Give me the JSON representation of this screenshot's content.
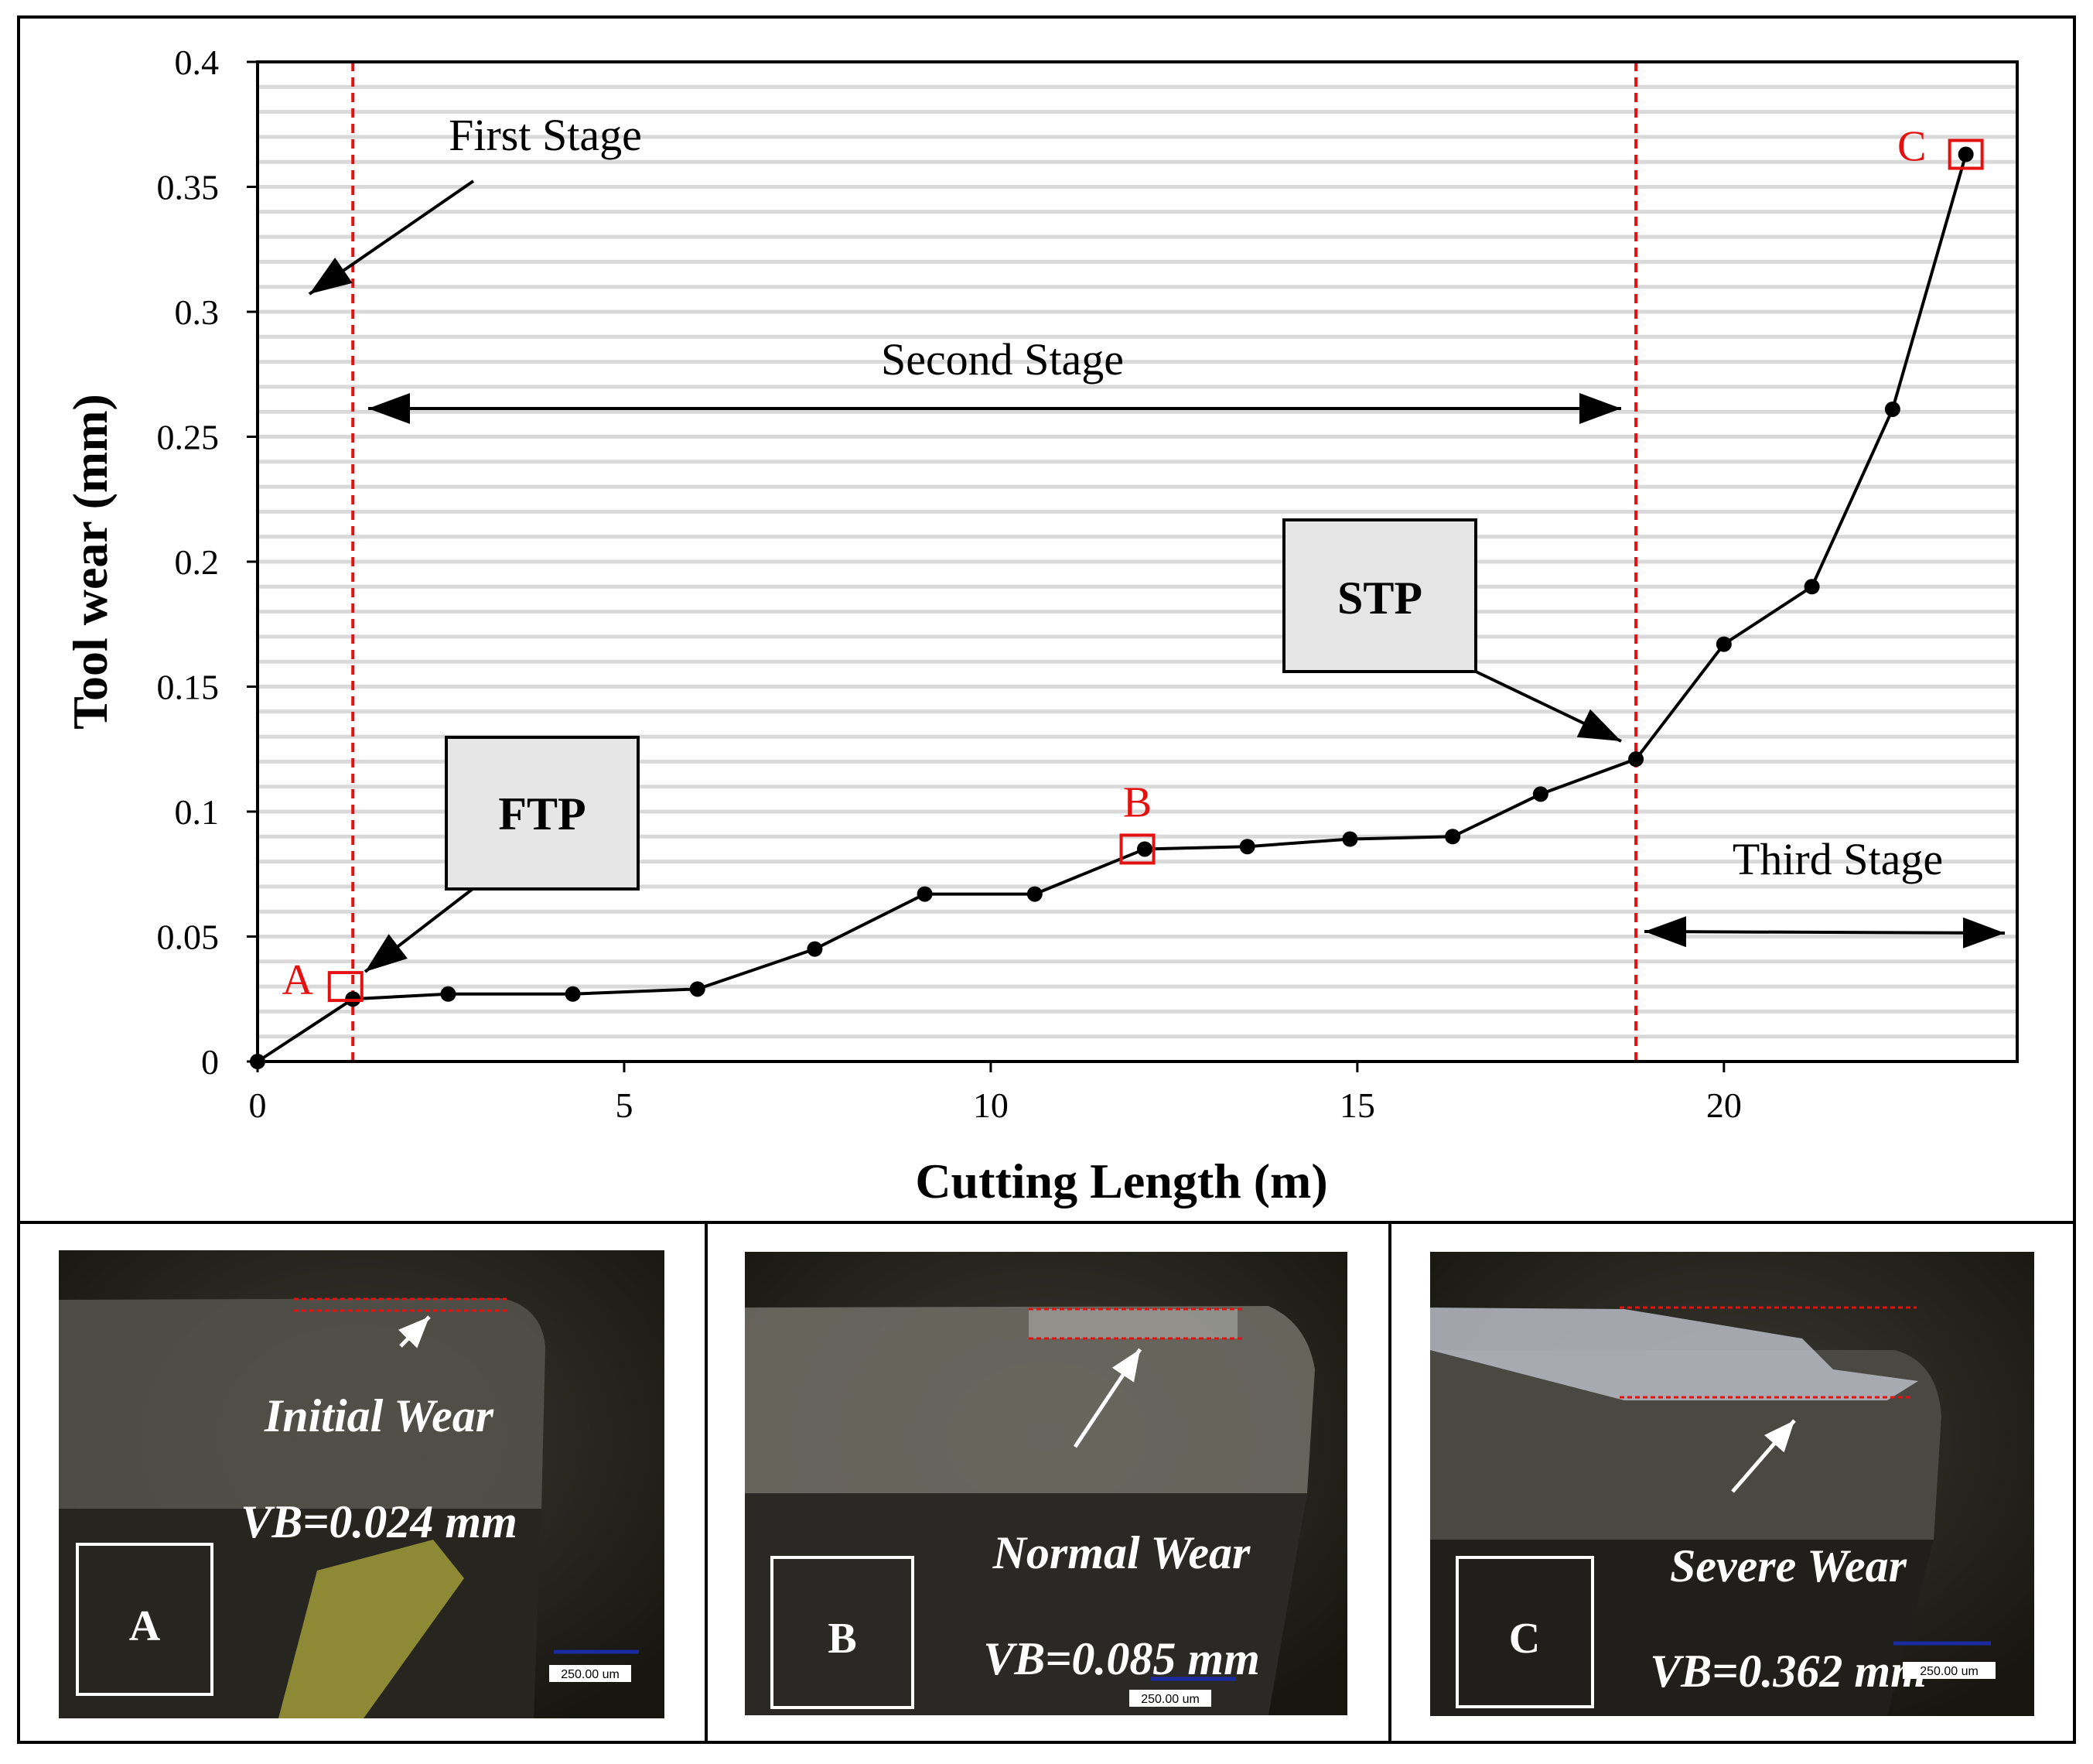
{
  "chart_data": {
    "type": "line",
    "xlabel": "Cutting Length (m)",
    "ylabel": "Tool wear (mm)",
    "xlim": [
      0,
      24
    ],
    "ylim": [
      0,
      0.4
    ],
    "xticks": [
      0,
      5,
      10,
      15,
      20
    ],
    "xtick_labels": [
      "0",
      "5",
      "10",
      "15",
      "20"
    ],
    "yticks": [
      0,
      0.05,
      0.1,
      0.15,
      0.2,
      0.25,
      0.3,
      0.35,
      0.4
    ],
    "ytick_labels": [
      "0",
      "0.05",
      "0.1",
      "0.15",
      "0.2",
      "0.25",
      "0.3",
      "0.35",
      "0.4"
    ],
    "grid": true,
    "series": [
      {
        "x": [
          0,
          1.3,
          2.6,
          4.3,
          6.0,
          7.6,
          9.1,
          10.6,
          12.1,
          13.5,
          14.9,
          16.3,
          17.5,
          18.8,
          20.0,
          21.2,
          22.3,
          23.3
        ],
        "y": [
          0,
          0.025,
          0.027,
          0.027,
          0.029,
          0.045,
          0.067,
          0.067,
          0.085,
          0.086,
          0.089,
          0.09,
          0.107,
          0.121,
          0.167,
          0.19,
          0.261,
          0.363
        ]
      }
    ],
    "vlines": [
      1.3,
      18.8
    ],
    "marked_points": [
      {
        "label": "A",
        "x": 1.2,
        "y": 0.03
      },
      {
        "label": "B",
        "x": 12.0,
        "y": 0.085
      },
      {
        "label": "C",
        "x": 23.3,
        "y": 0.363
      }
    ],
    "annotations": {
      "first_stage": "First Stage",
      "second_stage": "Second Stage",
      "third_stage": "Third Stage",
      "ftp": "FTP",
      "stp": "STP"
    },
    "colors": {
      "line": "#000000",
      "marker_box": "#e3110f",
      "vline": "#e3110f",
      "grid": "#d9d9d9",
      "callout_fill": "#e6e6e6"
    }
  },
  "photos": [
    {
      "box_label": "A",
      "caption": "Initial Wear",
      "value": "VB=0.024 mm",
      "scale": "250.00 um"
    },
    {
      "box_label": "B",
      "caption": "Normal Wear",
      "value": "VB=0.085 mm",
      "scale": "250.00 um"
    },
    {
      "box_label": "C",
      "caption": "Severe Wear",
      "value": "VB=0.362 mm",
      "scale": "250.00 um"
    }
  ]
}
